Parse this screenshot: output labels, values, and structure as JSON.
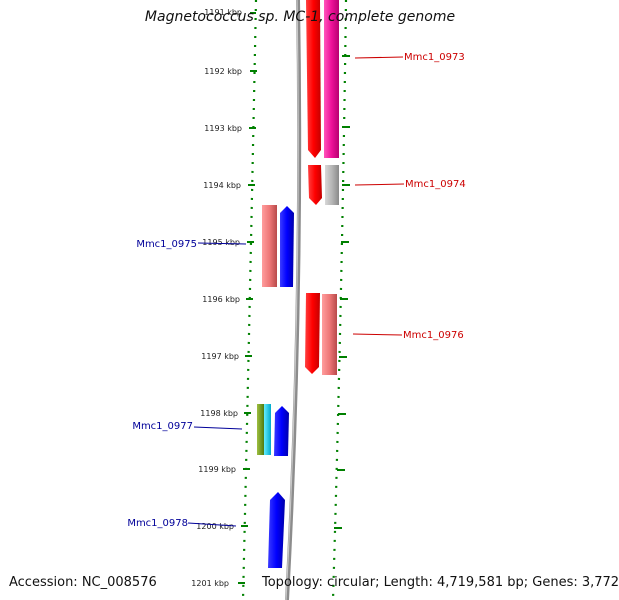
{
  "title": "Magnetococcus sp. MC-1, complete genome",
  "footer": {
    "accession": "Accession: NC_008576",
    "topology": "Topology: circular; Length: 4,719,581 bp; Genes: 3,772"
  },
  "axis": {
    "unit": "kbp",
    "ticks": [
      "1191 kbp",
      "1192 kbp",
      "1193 kbp",
      "1194 kbp",
      "1195 kbp",
      "1196 kbp",
      "1197 kbp",
      "1198 kbp",
      "1199 kbp",
      "1200 kbp",
      "1201 kbp"
    ]
  },
  "genes": [
    {
      "id": "Mmc1_0973",
      "color": "#cc0000"
    },
    {
      "id": "Mmc1_0974",
      "color": "#cc0000"
    },
    {
      "id": "Mmc1_0975",
      "color": "#000099"
    },
    {
      "id": "Mmc1_0976",
      "color": "#cc0000"
    },
    {
      "id": "Mmc1_0977",
      "color": "#000099"
    },
    {
      "id": "Mmc1_0978",
      "color": "#000099"
    }
  ],
  "colors": {
    "backbone": "#888888",
    "ring_dots": "#008000",
    "cds_forward": "#ff0000",
    "cds_reverse": "#0000ff",
    "hit_magenta": "#ee1199",
    "hit_grey": "#bbbbbb",
    "hit_pink": "#ee7777"
  }
}
